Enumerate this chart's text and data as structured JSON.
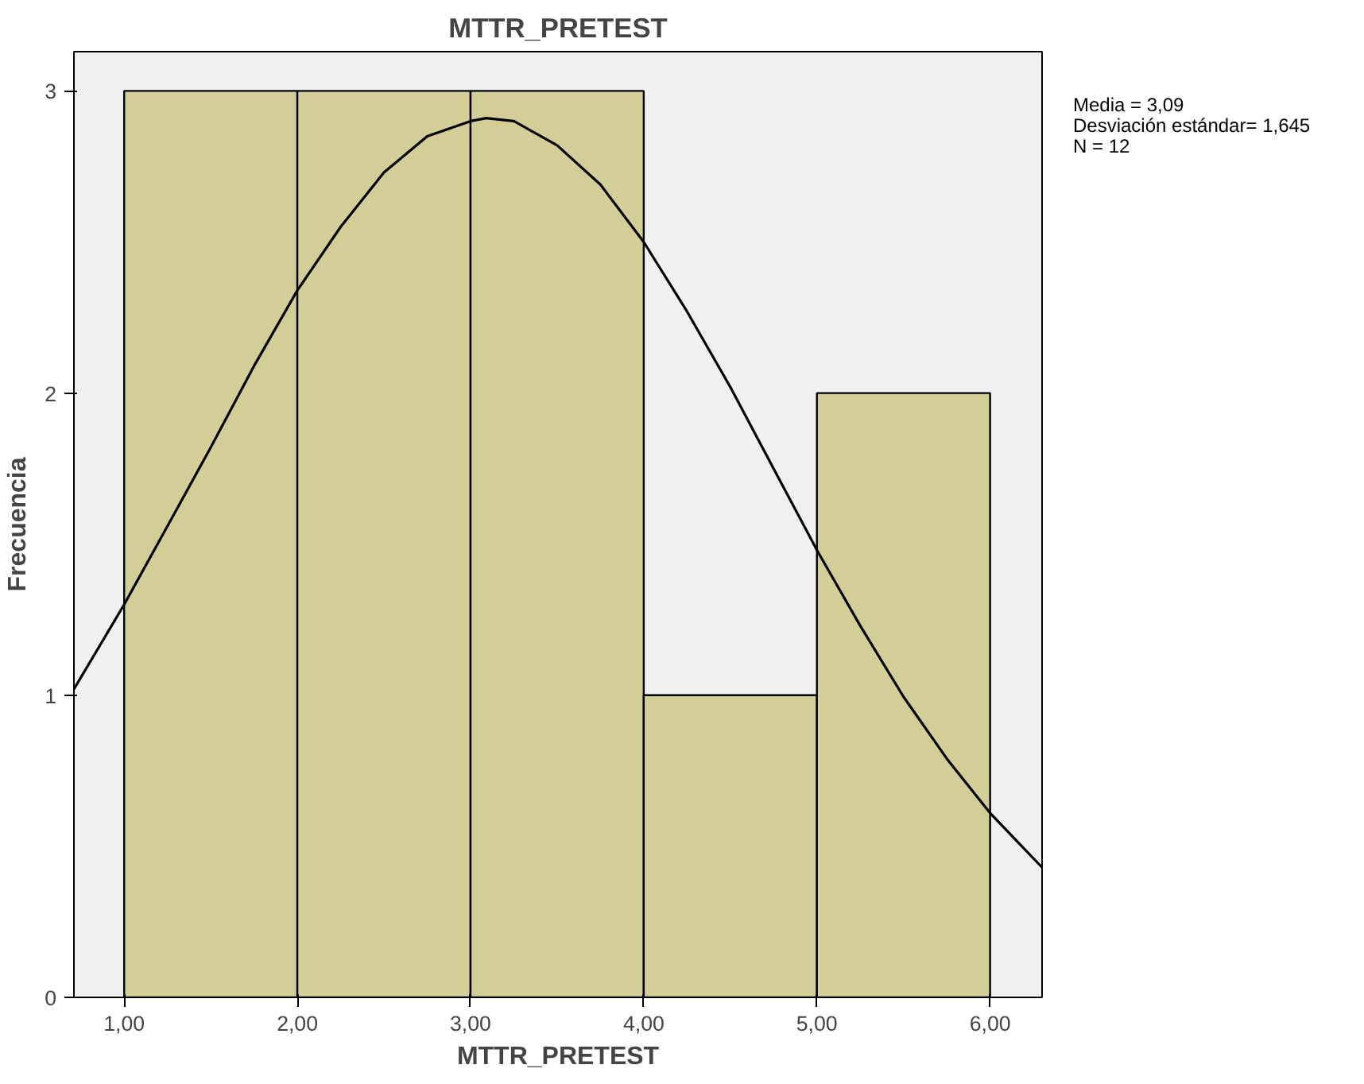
{
  "chart_data": {
    "type": "histogram",
    "title": "MTTR_PRETEST",
    "xlabel": "MTTR_PRETEST",
    "ylabel": "Frecuencia",
    "bins": [
      1,
      2,
      3,
      4,
      5,
      6
    ],
    "values": [
      3,
      3,
      3,
      1,
      2
    ],
    "color": "#d3ce98",
    "series": [
      {
        "type": "line",
        "color": "#000000",
        "x": [
          0.71,
          1.0,
          1.25,
          1.5,
          1.75,
          2.0,
          2.25,
          2.5,
          2.75,
          3.0,
          3.09,
          3.25,
          3.5,
          3.75,
          4.0,
          4.25,
          4.5,
          4.75,
          5.0,
          5.25,
          5.5,
          5.75,
          6.0,
          6.3
        ],
        "values": [
          1.02,
          1.3,
          1.56,
          1.82,
          2.09,
          2.34,
          2.55,
          2.73,
          2.85,
          2.9,
          2.91,
          2.9,
          2.82,
          2.69,
          2.5,
          2.27,
          2.02,
          1.75,
          1.48,
          1.23,
          0.995,
          0.79,
          0.61,
          0.43
        ]
      }
    ],
    "xlim": [
      0.71,
      6.3
    ],
    "ylim": [
      0,
      3.13
    ],
    "xticks": [
      {
        "value": 1,
        "label": "1,00"
      },
      {
        "value": 2,
        "label": "2,00"
      },
      {
        "value": 3,
        "label": "3,00"
      },
      {
        "value": 4,
        "label": "4,00"
      },
      {
        "value": 5,
        "label": "5,00"
      },
      {
        "value": 6,
        "label": "6,00"
      }
    ],
    "yticks": [
      0,
      1,
      2,
      3
    ],
    "grid": false,
    "annotations": [
      "Media = 3,09",
      "Desviación estándar= 1,645",
      "N = 12"
    ]
  }
}
